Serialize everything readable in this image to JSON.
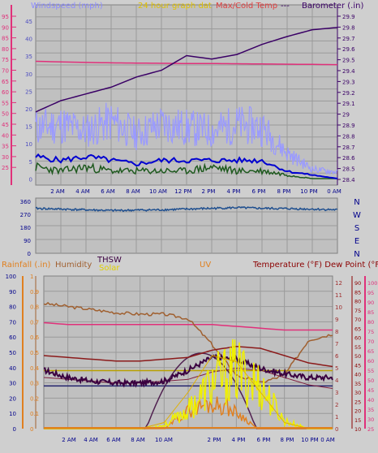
{
  "top": {
    "title_windspeed": "Windspeed (mph)",
    "title_24h": "24 hour graph dat",
    "title_temp": "Max/Cold Temp",
    "title_dash": "---",
    "title_baro": "Barometer (.in)",
    "left_outer_ticks": [
      "95",
      "90",
      "85",
      "80",
      "75",
      "70",
      "65",
      "60",
      "55",
      "50",
      "45",
      "40",
      "35",
      "30",
      "25"
    ],
    "left_inner_ticks": [
      "45",
      "40",
      "35",
      "30",
      "25",
      "20",
      "15",
      "10",
      "5",
      "0"
    ],
    "right_ticks": [
      "29.9",
      "29.8",
      "29.7",
      "29.6",
      "29.5",
      "29.4",
      "29.3",
      "29.2",
      "29.1",
      "29",
      "28.9",
      "28.8",
      "28.7",
      "28.6",
      "28.5",
      "28.4"
    ],
    "xlabels": [
      "2 AM",
      "4 AM",
      "6 AM",
      "8 AM",
      "10 AM",
      "12 PM",
      "2 PM",
      "4 PM",
      "6 PM",
      "8 PM",
      "10 PM",
      "0 AM"
    ]
  },
  "mid": {
    "left_ticks": [
      "360",
      "270",
      "180",
      "90",
      "0"
    ],
    "right_labels": [
      "N",
      "W",
      "S",
      "E",
      "N"
    ]
  },
  "bottom": {
    "label_rain": "Rainfall (.in)",
    "label_humidity": "Humidity",
    "label_thsw": "THSW",
    "label_solar": "Solar",
    "label_uv": "UV",
    "label_temp": "Temperature (°F) Dew Point (°F)",
    "rain_ticks": [
      "100",
      "90",
      "80",
      "70",
      "60",
      "50",
      "40",
      "30",
      "20",
      "10",
      "0"
    ],
    "rain_inner_ticks": [
      "1",
      "0.9",
      "0.8",
      "0.7",
      "0.6",
      "0.5",
      "0.4",
      "0.3",
      "0.2",
      "0.1",
      "0"
    ],
    "uv_ticks": [
      "12",
      "11",
      "10",
      "9",
      "8",
      "7",
      "6",
      "5",
      "4",
      "3",
      "2",
      "1",
      "0"
    ],
    "temp_ticks": [
      "90",
      "85",
      "80",
      "75",
      "70",
      "65",
      "60",
      "55",
      "50",
      "45",
      "40",
      "35",
      "30",
      "25",
      "20",
      "15",
      "10"
    ],
    "temp_outer_ticks": [
      "100",
      "95",
      "90",
      "85",
      "80",
      "75",
      "70",
      "65",
      "60",
      "55",
      "50",
      "45",
      "40",
      "35",
      "30",
      "25"
    ],
    "xlabels": [
      "2 AM",
      "4 AM",
      "6 AM",
      "8 AM",
      "10 AM",
      "2 PM",
      "4 PM",
      "6 PM",
      "8 PM",
      "10 PM",
      "0 AM"
    ]
  },
  "colors": {
    "windspeed_title": "#8c8cff",
    "title_24h": "#e0c000",
    "temp_title": "#e04040",
    "baro": "#3a0066",
    "pink": "#e0307a",
    "gust": "#9a9aff",
    "avg": "#0000d0",
    "green": "#1f5a1f",
    "winddir": "#1f4f8f",
    "rain": "#e08020",
    "humidity": "#a06030",
    "thsw": "#3a0040",
    "solar": "#f0f000",
    "uv": "#a03030"
  },
  "chart_data": [
    {
      "type": "line",
      "title": "24 hour graph data",
      "x": [
        "0 AM",
        "2 AM",
        "4 AM",
        "6 AM",
        "8 AM",
        "10 AM",
        "12 PM",
        "2 PM",
        "4 PM",
        "6 PM",
        "8 PM",
        "10 PM",
        "0 AM"
      ],
      "series": [
        {
          "name": "Barometer",
          "axis": "right",
          "values": [
            29.05,
            29.15,
            29.21,
            29.27,
            29.36,
            29.42,
            29.55,
            29.52,
            29.56,
            29.65,
            29.72,
            29.78,
            29.8
          ]
        },
        {
          "name": "Max/Cold Temp",
          "axis": "left_outer",
          "values": [
            75,
            74.7,
            74.5,
            74.3,
            74.2,
            74.1,
            74,
            74,
            73.9,
            73.8,
            73.7,
            73.6,
            73.5
          ]
        },
        {
          "name": "Windspeed gust",
          "axis": "left_inner",
          "values": [
            16,
            17,
            15,
            18,
            14,
            17,
            16,
            15,
            17,
            16,
            8,
            3,
            2
          ]
        },
        {
          "name": "Windspeed avg",
          "axis": "left_inner",
          "values": [
            6,
            5,
            6,
            5,
            4,
            5,
            5,
            5,
            5,
            5,
            2,
            1,
            0
          ]
        },
        {
          "name": "Windspeed low",
          "axis": "left_inner",
          "values": [
            3,
            2,
            3,
            2,
            2,
            2,
            2,
            3,
            2,
            2,
            1,
            0,
            0
          ]
        }
      ],
      "ylim_left_inner": [
        0,
        45
      ],
      "ylim_left_outer": [
        20,
        95
      ],
      "ylim_right": [
        28.4,
        29.9
      ]
    },
    {
      "type": "line",
      "x": [
        "0 AM",
        "2 AM",
        "4 AM",
        "6 AM",
        "8 AM",
        "10 AM",
        "12 PM",
        "2 PM",
        "4 PM",
        "6 PM",
        "8 PM",
        "10 PM",
        "0 AM"
      ],
      "series": [
        {
          "name": "Wind direction",
          "values": [
            300,
            295,
            290,
            285,
            288,
            290,
            295,
            300,
            305,
            300,
            298,
            295,
            290
          ]
        }
      ],
      "ylim": [
        0,
        360
      ]
    },
    {
      "type": "line",
      "x": [
        "0 AM",
        "2 AM",
        "4 AM",
        "6 AM",
        "8 AM",
        "10 AM",
        "12 PM",
        "2 PM",
        "4 PM",
        "6 PM",
        "8 PM",
        "10 PM",
        "0 AM"
      ],
      "series": [
        {
          "name": "Temperature",
          "axis": "temp",
          "values": [
            50,
            49,
            48,
            47,
            47,
            48,
            49,
            53,
            55,
            54,
            50,
            46,
            44
          ]
        },
        {
          "name": "Dew Point",
          "axis": "temp",
          "values": [
            68,
            67,
            67,
            67,
            67,
            67,
            67,
            67,
            66,
            65,
            64,
            64,
            64
          ]
        },
        {
          "name": "Humidity",
          "axis": "rain",
          "values": [
            82,
            80,
            78,
            76,
            75,
            75,
            72,
            55,
            35,
            30,
            35,
            58,
            62
          ]
        },
        {
          "name": "THSW",
          "axis": "temp",
          "values": [
            42,
            38,
            36,
            35,
            35,
            36,
            42,
            49,
            48,
            43,
            40,
            38,
            38
          ]
        },
        {
          "name": "Solar",
          "axis": "rain",
          "values": [
            0,
            0,
            0,
            0,
            0,
            2,
            12,
            30,
            38,
            28,
            5,
            0,
            0
          ]
        },
        {
          "name": "UV",
          "axis": "uv",
          "values": [
            0,
            0,
            0,
            0,
            0,
            0.5,
            3,
            6,
            5.5,
            3,
            0.5,
            0,
            0
          ]
        },
        {
          "name": "Rainfall",
          "axis": "rain",
          "values": [
            0,
            0,
            0,
            0,
            0,
            0,
            0,
            0,
            0,
            0,
            0,
            0,
            0
          ]
        }
      ],
      "ylim_rain": [
        0,
        100
      ],
      "ylim_uv": [
        0,
        12
      ],
      "ylim_temp": [
        10,
        90
      ]
    }
  ]
}
